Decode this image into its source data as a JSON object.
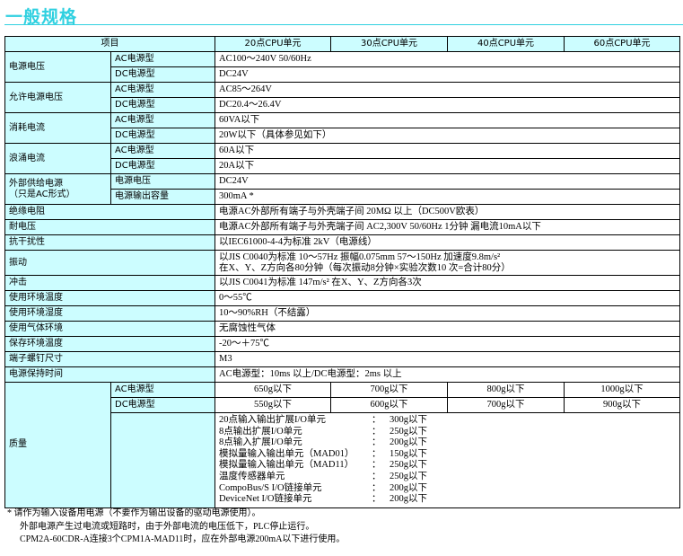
{
  "title": "一般规格",
  "header": [
    "项目",
    "20点CPU单元",
    "30点CPU单元",
    "40点CPU单元",
    "60点CPU单元"
  ],
  "rows": {
    "supply_voltage": {
      "label": "电源电压",
      "ac": "AC电源型",
      "ac_v": "AC100～240V  50/60Hz",
      "dc": "DC电源型",
      "dc_v": "DC24V"
    },
    "allowed_voltage": {
      "label": "允许电源电压",
      "ac": "AC电源型",
      "ac_v": "AC85～264V",
      "dc": "DC电源型",
      "dc_v": "DC20.4～26.4V"
    },
    "power_consumption": {
      "label": "消耗电流",
      "ac": "AC电源型",
      "ac_v": "60VA以下",
      "dc": "DC电源型",
      "dc_v": "20W以下（具体参见如下）"
    },
    "inrush": {
      "label": "浪涌电流",
      "ac": "AC电源型",
      "ac_v": "60A以下",
      "dc": "DC电源型",
      "dc_v": "20A以下"
    },
    "external_supply": {
      "label1": "外部供给电源",
      "label2": "（只是AC形式）",
      "a": "电源电压",
      "a_v": "DC24V",
      "b": "电源输出容量",
      "b_v": "300mA  *"
    },
    "insulation": {
      "label": "绝缘电阻",
      "value": "电源AC外部所有端子与外壳端子间 20MΩ 以上（DC500V欧表）"
    },
    "withstand": {
      "label": "耐电压",
      "value": "电源AC外部所有端子与外壳端子间  AC2,300V  50/60Hz  1分钟 漏电流10mA以下"
    },
    "noise": {
      "label": "抗干扰性",
      "value": "以IEC61000-4-4为标准  2kV（电源线）"
    },
    "vibration": {
      "label": "振动",
      "value1": "以JIS C0040为标准  10～57Hz  振幅0.075mm  57～150Hz  加速度9.8m/s²",
      "value2": "在X、Y、Z方向各80分钟（每次振动8分钟×实验次数10 次=合计80分）"
    },
    "shock": {
      "label": "冲击",
      "value": "以JIS C0041为标准   147m/s²  在X、Y、Z方向各3次"
    },
    "temp": {
      "label": "使用环境温度",
      "value": "0～55℃"
    },
    "humidity": {
      "label": "使用环境湿度",
      "value": "10～90%RH（不结露）"
    },
    "atmosphere": {
      "label": "使用气体环境",
      "value": "无腐蚀性气体"
    },
    "storage_temp": {
      "label": "保存环境温度",
      "value": "-20～＋75℃"
    },
    "screw": {
      "label": "端子螺钉尺寸",
      "value": "M3"
    },
    "hold_time": {
      "label": "电源保持时间",
      "value": "AC电源型：10ms 以上/DC电源型：2ms 以上"
    },
    "mass": {
      "label": "质量",
      "ac": "AC电源型",
      "ac_vals": [
        "650g以下",
        "700g以下",
        "800g以下",
        "1000g以下"
      ],
      "dc": "DC电源型",
      "dc_vals": [
        "550g以下",
        "600g以下",
        "700g以下",
        "900g以下"
      ],
      "units": [
        {
          "name": "20点输入输出扩展I/O单元",
          "value": "300g以下"
        },
        {
          "name": "8点输出扩展I/O单元",
          "value": "250g以下"
        },
        {
          "name": "8点输入扩展I/O单元",
          "value": "200g以下"
        },
        {
          "name": "模拟量输入输出单元（MAD01）",
          "value": "150g以下"
        },
        {
          "name": "模拟量输入输出单元（MAD11）",
          "value": "250g以下"
        },
        {
          "name": "温度传感器单元",
          "value": "250g以下"
        },
        {
          "name": "CompoBus/S I/O链接单元",
          "value": "200g以下"
        },
        {
          "name": "DeviceNet I/O链接单元",
          "value": "200g以下"
        }
      ]
    }
  },
  "footnotes": [
    "*  请作为输入设备用电源（不要作为输出设备的驱动电源使用）。",
    "外部电源产生过电流或短路时，由于外部电流的电压低下，PLC停止运行。",
    "CPM2A-60CDR-A连接3个CPM1A-MAD11时，应在外部电源200mA以下进行使用。"
  ]
}
